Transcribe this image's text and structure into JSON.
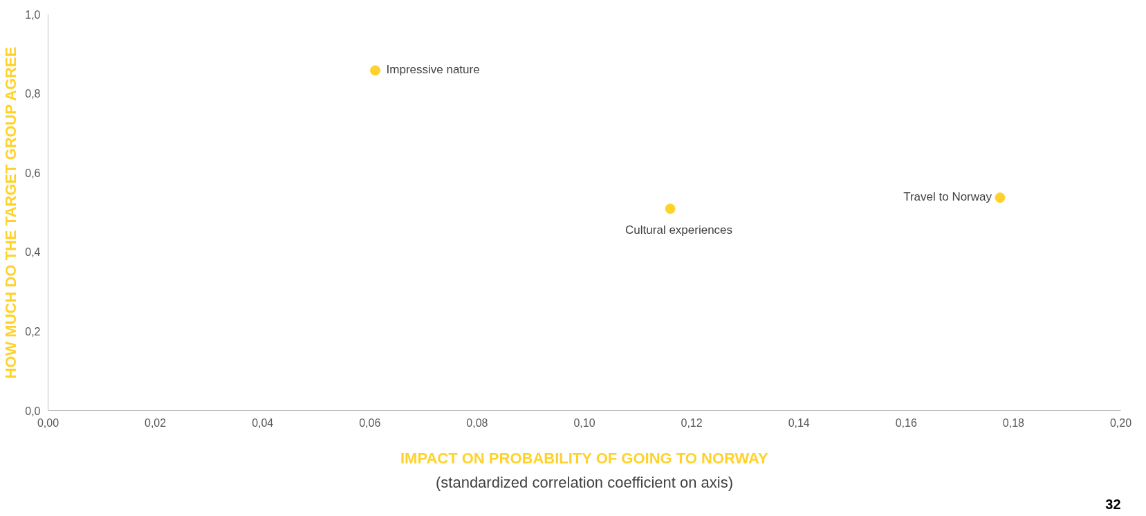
{
  "chart_data": {
    "type": "scatter",
    "xlabel": "IMPACT ON PROBABILITY OF GOING TO NORWAY",
    "ylabel": "HOW MUCH DO THE TARGET GROUP AGREE",
    "x": [
      0.061,
      0.116,
      0.1775
    ],
    "series": [
      {
        "color": "#ffd22b",
        "values": [
          0.858,
          0.509,
          0.537
        ]
      }
    ],
    "marker": "circle",
    "grid": false,
    "xlim": [
      0,
      0.2
    ],
    "ylim": [
      0,
      1
    ],
    "xticks": [
      {
        "value": 0,
        "label": "0,00"
      },
      {
        "value": 0.02,
        "label": "0,02"
      },
      {
        "value": 0.04,
        "label": "0,04"
      },
      {
        "value": 0.06,
        "label": "0,06"
      },
      {
        "value": 0.08,
        "label": "0,08"
      },
      {
        "value": 0.1,
        "label": "0,10"
      },
      {
        "value": 0.12,
        "label": "0,12"
      },
      {
        "value": 0.14,
        "label": "0,14"
      },
      {
        "value": 0.16,
        "label": "0,16"
      },
      {
        "value": 0.18,
        "label": "0,18"
      },
      {
        "value": 0.2,
        "label": "0,20"
      }
    ],
    "yticks": [
      {
        "value": 0,
        "label": "0,0"
      },
      {
        "value": 0.2,
        "label": "0,2"
      },
      {
        "value": 0.4,
        "label": "0,4"
      },
      {
        "value": 0.6,
        "label": "0,6"
      },
      {
        "value": 0.8,
        "label": "0,8"
      },
      {
        "value": 1,
        "label": "1,0"
      }
    ],
    "annotations": [
      {
        "text": "Impressive nature",
        "x": 0.061,
        "y": 0.858
      },
      {
        "text": "Cultural experiences",
        "x": 0.116,
        "y": 0.509
      },
      {
        "text": "Travel to Norway",
        "x": 0.1775,
        "y": 0.537
      },
      "(standardized correlation coefficient on axis)",
      "32"
    ]
  }
}
